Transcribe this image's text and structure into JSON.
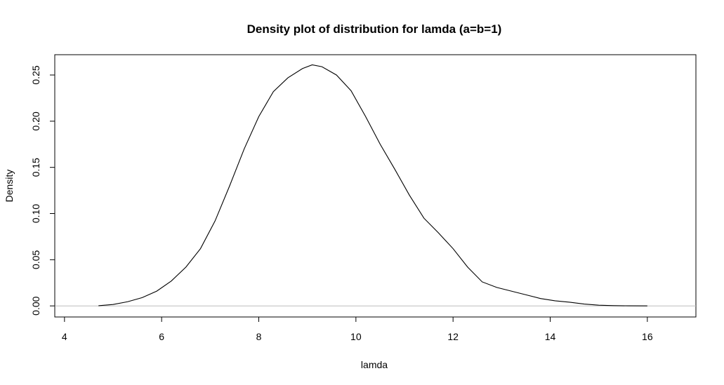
{
  "chart_data": {
    "type": "line",
    "title": "Density plot of distribution for lamda (a=b=1)",
    "xlabel": "lamda",
    "ylabel": "Density",
    "xlim": [
      3.8,
      17.0
    ],
    "ylim": [
      -0.012,
      0.272
    ],
    "x_ticks": [
      4,
      6,
      8,
      10,
      12,
      14,
      16
    ],
    "x_tick_labels": [
      "4",
      "6",
      "8",
      "10",
      "12",
      "14",
      "16"
    ],
    "y_ticks": [
      0.0,
      0.05,
      0.1,
      0.15,
      0.2,
      0.25
    ],
    "y_tick_labels": [
      "0.00",
      "0.05",
      "0.10",
      "0.15",
      "0.20",
      "0.25"
    ],
    "zero_line": true,
    "grid": false,
    "line_color": "#000000",
    "zero_line_color": "#bebebe",
    "series": [
      {
        "x": [
          4.7,
          5.0,
          5.3,
          5.6,
          5.9,
          6.2,
          6.5,
          6.8,
          7.1,
          7.4,
          7.7,
          8.0,
          8.3,
          8.6,
          8.9,
          9.1,
          9.3,
          9.6,
          9.9,
          10.2,
          10.5,
          10.8,
          11.1,
          11.4,
          11.7,
          12.0,
          12.3,
          12.6,
          12.9,
          13.2,
          13.5,
          13.8,
          14.1,
          14.4,
          14.7,
          15.0,
          15.3,
          15.6,
          16.0
        ],
        "y": [
          0.0002,
          0.0015,
          0.0045,
          0.009,
          0.016,
          0.027,
          0.042,
          0.062,
          0.092,
          0.13,
          0.17,
          0.205,
          0.232,
          0.247,
          0.257,
          0.261,
          0.259,
          0.25,
          0.233,
          0.205,
          0.175,
          0.148,
          0.12,
          0.095,
          0.079,
          0.062,
          0.042,
          0.026,
          0.02,
          0.016,
          0.012,
          0.008,
          0.0055,
          0.004,
          0.002,
          0.0008,
          0.0003,
          0.0001,
          0.0
        ]
      }
    ]
  }
}
